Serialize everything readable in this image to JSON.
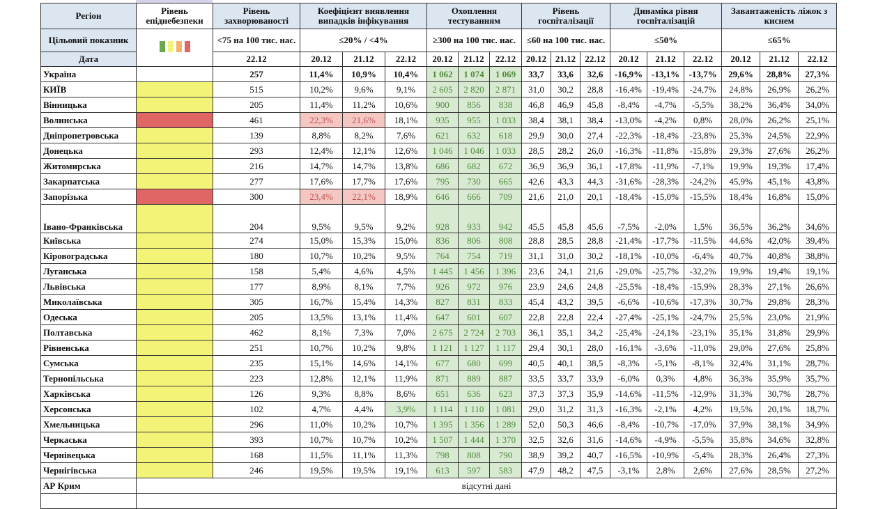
{
  "header": {
    "region": "Регіон",
    "level": "Рівень епіднебезпеки",
    "rate": "Рівень захворюваності",
    "detect": "Коефіцієнт виявлення випадків інфікування",
    "test": "Охоплення тестуванням",
    "hosp": "Рівень госпіталізації",
    "dyn": "Динаміка рівня госпіталізацій",
    "beds": "Завантаженість ліжок з киснем",
    "target_label": "Цільовий показник",
    "target_rate": "<75 на 100 тис. нас.",
    "target_detect": "≤20% / <4%",
    "target_test": "≥300 на 100 тис. нас.",
    "target_hosp": "≤60 на 100 тис. нас.",
    "target_dyn": "≤50%",
    "target_beds": "≤65%",
    "date_label": "Дата",
    "rate_date": "22.12",
    "dates": [
      "20.12",
      "21.12",
      "22.12"
    ]
  },
  "colors": {
    "legend": [
      "#6aa84f",
      "#f3f378",
      "#f6b26b",
      "#e06666"
    ],
    "yellow": "#f3f378",
    "red": "#e06666"
  },
  "rows": [
    {
      "region": "Україна",
      "level": "",
      "rate": "257",
      "detect": [
        "11,4%",
        "10,9%",
        "10,4%"
      ],
      "test": [
        "1 062",
        "1 074",
        "1 069"
      ],
      "hosp": [
        "33,7",
        "33,6",
        "32,6"
      ],
      "dyn": [
        "-16,9%",
        "-13,1%",
        "-13,7%"
      ],
      "beds": [
        "29,6%",
        "28,8%",
        "27,3%"
      ]
    },
    {
      "region": "КИЇВ",
      "level": "yellow",
      "rate": "515",
      "detect": [
        "10,2%",
        "9,6%",
        "9,1%"
      ],
      "test": [
        "2 605",
        "2 820",
        "2 871"
      ],
      "hosp": [
        "31,0",
        "30,2",
        "28,8"
      ],
      "dyn": [
        "-16,4%",
        "-19,4%",
        "-24,7%"
      ],
      "beds": [
        "24,8%",
        "26,9%",
        "26,2%"
      ]
    },
    {
      "region": "Вінницька",
      "level": "yellow",
      "rate": "205",
      "detect": [
        "11,4%",
        "11,2%",
        "10,6%"
      ],
      "test": [
        "900",
        "856",
        "838"
      ],
      "hosp": [
        "46,8",
        "46,9",
        "45,8"
      ],
      "dyn": [
        "-8,4%",
        "-4,7%",
        "-5,5%"
      ],
      "beds": [
        "38,2%",
        "36,4%",
        "34,0%"
      ]
    },
    {
      "region": "Волинська",
      "level": "red",
      "rate": "461",
      "detect": [
        "22,3%",
        "21,6%",
        "18,1%"
      ],
      "detect_flags": [
        "red",
        "red",
        ""
      ],
      "test": [
        "935",
        "955",
        "1 033"
      ],
      "hosp": [
        "38,4",
        "38,1",
        "38,4"
      ],
      "dyn": [
        "-13,0%",
        "-4,2%",
        "0,8%"
      ],
      "beds": [
        "28,0%",
        "26,2%",
        "25,1%"
      ]
    },
    {
      "region": "Дніпропетровська",
      "level": "yellow",
      "rate": "139",
      "detect": [
        "8,8%",
        "8,2%",
        "7,6%"
      ],
      "test": [
        "621",
        "632",
        "618"
      ],
      "hosp": [
        "29,9",
        "30,0",
        "27,4"
      ],
      "dyn": [
        "-22,3%",
        "-18,4%",
        "-23,8%"
      ],
      "beds": [
        "25,3%",
        "24,5%",
        "22,9%"
      ]
    },
    {
      "region": "Донецька",
      "level": "yellow",
      "rate": "293",
      "detect": [
        "12,4%",
        "12,1%",
        "12,6%"
      ],
      "test": [
        "1 046",
        "1 046",
        "1 033"
      ],
      "hosp": [
        "28,5",
        "28,2",
        "26,0"
      ],
      "dyn": [
        "-16,3%",
        "-11,8%",
        "-15,8%"
      ],
      "beds": [
        "29,3%",
        "27,6%",
        "26,2%"
      ]
    },
    {
      "region": "Житомирська",
      "level": "yellow",
      "rate": "216",
      "detect": [
        "14,7%",
        "14,7%",
        "13,8%"
      ],
      "test": [
        "686",
        "682",
        "672"
      ],
      "hosp": [
        "36,9",
        "36,9",
        "36,1"
      ],
      "dyn": [
        "-17,8%",
        "-11,9%",
        "-7,1%"
      ],
      "beds": [
        "19,9%",
        "19,3%",
        "17,4%"
      ]
    },
    {
      "region": "Закарпатська",
      "level": "yellow",
      "rate": "277",
      "detect": [
        "17,6%",
        "17,7%",
        "17,6%"
      ],
      "test": [
        "795",
        "730",
        "665"
      ],
      "hosp": [
        "42,6",
        "43,3",
        "44,3"
      ],
      "dyn": [
        "-31,6%",
        "-28,3%",
        "-24,2%"
      ],
      "beds": [
        "45,9%",
        "45,1%",
        "43,8%"
      ]
    },
    {
      "region": "Запорізька",
      "level": "red",
      "rate": "300",
      "detect": [
        "23,4%",
        "22,1%",
        "18,9%"
      ],
      "detect_flags": [
        "red",
        "red",
        ""
      ],
      "test": [
        "646",
        "666",
        "709"
      ],
      "hosp": [
        "21,6",
        "21,0",
        "20,1"
      ],
      "dyn": [
        "-18,4%",
        "-15,0%",
        "-15,5%"
      ],
      "beds": [
        "18,4%",
        "16,8%",
        "15,0%"
      ]
    },
    {
      "region": "Івано-Франківська",
      "level": "yellow",
      "rate": "204",
      "detect": [
        "9,5%",
        "9,5%",
        "9,2%"
      ],
      "test": [
        "928",
        "933",
        "942"
      ],
      "hosp": [
        "45,5",
        "45,8",
        "45,6"
      ],
      "dyn": [
        "-7,5%",
        "-2,0%",
        "1,5%"
      ],
      "beds": [
        "36,5%",
        "36,2%",
        "34,6%"
      ],
      "tall": true
    },
    {
      "region": "Київська",
      "level": "yellow",
      "rate": "274",
      "detect": [
        "15,0%",
        "15,3%",
        "15,0%"
      ],
      "test": [
        "836",
        "806",
        "808"
      ],
      "hosp": [
        "28,8",
        "28,5",
        "28,8"
      ],
      "dyn": [
        "-21,4%",
        "-17,7%",
        "-11,5%"
      ],
      "beds": [
        "44,6%",
        "42,0%",
        "39,4%"
      ]
    },
    {
      "region": "Кіровоградська",
      "level": "yellow",
      "rate": "180",
      "detect": [
        "10,7%",
        "10,2%",
        "9,5%"
      ],
      "test": [
        "764",
        "754",
        "719"
      ],
      "hosp": [
        "31,1",
        "31,0",
        "30,2"
      ],
      "dyn": [
        "-18,1%",
        "-10,0%",
        "-6,4%"
      ],
      "beds": [
        "40,7%",
        "40,8%",
        "38,8%"
      ]
    },
    {
      "region": "Луганська",
      "level": "yellow",
      "rate": "158",
      "detect": [
        "5,4%",
        "4,6%",
        "4,5%"
      ],
      "test": [
        "1 445",
        "1 456",
        "1 396"
      ],
      "hosp": [
        "23,6",
        "24,1",
        "21,6"
      ],
      "dyn": [
        "-29,0%",
        "-25,7%",
        "-32,2%"
      ],
      "beds": [
        "19,9%",
        "19,4%",
        "19,1%"
      ]
    },
    {
      "region": "Львівська",
      "level": "yellow",
      "rate": "177",
      "detect": [
        "8,9%",
        "8,1%",
        "7,7%"
      ],
      "test": [
        "926",
        "972",
        "976"
      ],
      "hosp": [
        "23,9",
        "24,6",
        "24,8"
      ],
      "dyn": [
        "-25,5%",
        "-18,4%",
        "-15,9%"
      ],
      "beds": [
        "28,3%",
        "27,1%",
        "26,6%"
      ]
    },
    {
      "region": "Миколаївська",
      "level": "yellow",
      "rate": "305",
      "detect": [
        "16,7%",
        "15,4%",
        "14,3%"
      ],
      "test": [
        "827",
        "831",
        "833"
      ],
      "hosp": [
        "45,4",
        "43,2",
        "39,5"
      ],
      "dyn": [
        "-6,6%",
        "-10,6%",
        "-17,3%"
      ],
      "beds": [
        "30,7%",
        "29,8%",
        "28,3%"
      ]
    },
    {
      "region": "Одеська",
      "level": "yellow",
      "rate": "205",
      "detect": [
        "13,5%",
        "13,1%",
        "11,4%"
      ],
      "test": [
        "647",
        "601",
        "607"
      ],
      "hosp": [
        "22,8",
        "22,8",
        "22,4"
      ],
      "dyn": [
        "-27,4%",
        "-25,1%",
        "-24,7%"
      ],
      "beds": [
        "25,5%",
        "23,0%",
        "21,9%"
      ]
    },
    {
      "region": "Полтавська",
      "level": "yellow",
      "rate": "462",
      "detect": [
        "8,1%",
        "7,3%",
        "7,0%"
      ],
      "test": [
        "2 675",
        "2 724",
        "2 703"
      ],
      "hosp": [
        "36,1",
        "35,1",
        "34,2"
      ],
      "dyn": [
        "-25,4%",
        "-24,1%",
        "-23,1%"
      ],
      "beds": [
        "35,1%",
        "31,8%",
        "29,9%"
      ]
    },
    {
      "region": "Рівненська",
      "level": "yellow",
      "rate": "251",
      "detect": [
        "10,7%",
        "10,2%",
        "9,8%"
      ],
      "test": [
        "1 121",
        "1 127",
        "1 117"
      ],
      "hosp": [
        "29,4",
        "30,1",
        "28,0"
      ],
      "dyn": [
        "-16,1%",
        "-3,6%",
        "-11,0%"
      ],
      "beds": [
        "29,0%",
        "27,6%",
        "25,8%"
      ]
    },
    {
      "region": "Сумська",
      "level": "yellow",
      "rate": "235",
      "detect": [
        "15,1%",
        "14,6%",
        "14,1%"
      ],
      "test": [
        "677",
        "680",
        "699"
      ],
      "hosp": [
        "40,5",
        "40,1",
        "38,5"
      ],
      "dyn": [
        "-8,3%",
        "-5,1%",
        "-8,1%"
      ],
      "beds": [
        "32,4%",
        "31,1%",
        "28,7%"
      ]
    },
    {
      "region": "Тернопільська",
      "level": "yellow",
      "rate": "223",
      "detect": [
        "12,8%",
        "12,1%",
        "11,9%"
      ],
      "test": [
        "871",
        "889",
        "887"
      ],
      "hosp": [
        "33,5",
        "33,7",
        "33,9"
      ],
      "dyn": [
        "-6,0%",
        "0,3%",
        "4,8%"
      ],
      "beds": [
        "36,3%",
        "35,9%",
        "35,7%"
      ]
    },
    {
      "region": "Харківська",
      "level": "yellow",
      "rate": "126",
      "detect": [
        "9,3%",
        "8,8%",
        "8,6%"
      ],
      "test": [
        "651",
        "636",
        "623"
      ],
      "hosp": [
        "37,3",
        "37,3",
        "35,9"
      ],
      "dyn": [
        "-14,6%",
        "-11,5%",
        "-12,9%"
      ],
      "beds": [
        "31,3%",
        "30,7%",
        "28,7%"
      ]
    },
    {
      "region": "Херсонська",
      "level": "yellow",
      "rate": "102",
      "detect": [
        "4,7%",
        "4,4%",
        "3,9%"
      ],
      "detect_flags": [
        "",
        "",
        "green"
      ],
      "test": [
        "1 114",
        "1 110",
        "1 081"
      ],
      "hosp": [
        "29,0",
        "31,2",
        "31,3"
      ],
      "dyn": [
        "-16,3%",
        "-2,1%",
        "4,2%"
      ],
      "beds": [
        "19,5%",
        "20,1%",
        "18,7%"
      ]
    },
    {
      "region": "Хмельницька",
      "level": "yellow",
      "rate": "296",
      "detect": [
        "11,0%",
        "10,2%",
        "10,7%"
      ],
      "test": [
        "1 395",
        "1 356",
        "1 289"
      ],
      "hosp": [
        "52,0",
        "50,3",
        "46,6"
      ],
      "dyn": [
        "-8,4%",
        "-10,7%",
        "-17,0%"
      ],
      "beds": [
        "37,9%",
        "38,1%",
        "34,9%"
      ]
    },
    {
      "region": "Черкаська",
      "level": "yellow",
      "rate": "393",
      "detect": [
        "10,7%",
        "10,7%",
        "10,2%"
      ],
      "test": [
        "1 507",
        "1 444",
        "1 370"
      ],
      "hosp": [
        "32,5",
        "32,6",
        "31,6"
      ],
      "dyn": [
        "-14,6%",
        "-4,9%",
        "-5,5%"
      ],
      "beds": [
        "35,8%",
        "34,6%",
        "32,8%"
      ]
    },
    {
      "region": "Чернівецька",
      "level": "yellow",
      "rate": "168",
      "detect": [
        "11,5%",
        "11,1%",
        "11,3%"
      ],
      "test": [
        "798",
        "808",
        "790"
      ],
      "hosp": [
        "38,9",
        "39,2",
        "40,7"
      ],
      "dyn": [
        "-16,5%",
        "-10,9%",
        "-5,4%"
      ],
      "beds": [
        "28,3%",
        "26,4%",
        "27,3%"
      ]
    },
    {
      "region": "Чернігівська",
      "level": "yellow",
      "rate": "246",
      "detect": [
        "19,5%",
        "19,5%",
        "19,1%"
      ],
      "test": [
        "613",
        "597",
        "583"
      ],
      "hosp": [
        "47,9",
        "48,2",
        "47,5"
      ],
      "dyn": [
        "-3,1%",
        "2,8%",
        "2,6%"
      ],
      "beds": [
        "27,6%",
        "28,5%",
        "27,2%"
      ]
    }
  ],
  "footer": {
    "crimea": "АР Крим",
    "no_data": "відсутні дані"
  }
}
